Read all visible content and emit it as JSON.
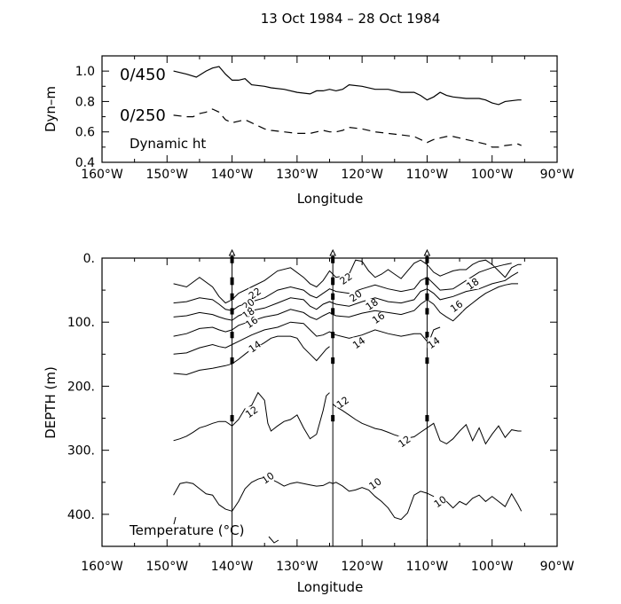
{
  "title": "13 Oct 1984 – 28 Oct 1984",
  "chart_data": [
    {
      "type": "line",
      "panel": "dynamic-height",
      "ylabel": "Dyn–m",
      "xlabel": "Longitude",
      "annotation": "Dynamic ht",
      "xlim": [
        -160,
        -90
      ],
      "ylim": [
        0.4,
        1.1
      ],
      "x_ticks": [
        -160,
        -150,
        -140,
        -130,
        -120,
        -110,
        -100,
        -90
      ],
      "x_tick_labels": [
        "160°W",
        "150°W",
        "140°W",
        "130°W",
        "120°W",
        "110°W",
        "100°W",
        "90°W"
      ],
      "y_ticks": [
        0.4,
        0.6,
        0.8,
        1.0
      ],
      "y_tick_labels": [
        "0.4",
        "0.6",
        "0.8",
        "1.0"
      ],
      "series": [
        {
          "name": "0/450",
          "style": "solid",
          "x": [
            -149,
            -147,
            -145.5,
            -144,
            -143,
            -142,
            -141,
            -140,
            -139,
            -138,
            -137,
            -135,
            -134,
            -132,
            -130,
            -128,
            -127,
            -126,
            -125,
            -124,
            -123,
            -122,
            -120,
            -118,
            -116,
            -114,
            -112,
            -111,
            -110,
            -109,
            -108,
            -107,
            -106,
            -104,
            -102,
            -101,
            -100,
            -99,
            -98,
            -96,
            -95.5
          ],
          "values": [
            1.0,
            0.98,
            0.96,
            1.0,
            1.02,
            1.03,
            0.98,
            0.94,
            0.94,
            0.95,
            0.91,
            0.9,
            0.89,
            0.88,
            0.86,
            0.85,
            0.87,
            0.87,
            0.88,
            0.87,
            0.88,
            0.91,
            0.9,
            0.88,
            0.88,
            0.86,
            0.86,
            0.84,
            0.81,
            0.83,
            0.86,
            0.84,
            0.83,
            0.82,
            0.82,
            0.81,
            0.79,
            0.78,
            0.8,
            0.81,
            0.81
          ]
        },
        {
          "name": "0/250",
          "style": "dashed",
          "x": [
            -149,
            -147,
            -146,
            -145,
            -144,
            -143,
            -142,
            -141,
            -140,
            -139,
            -138,
            -137,
            -135,
            -134,
            -132,
            -130,
            -128,
            -126,
            -125,
            -124,
            -123,
            -122,
            -120,
            -118,
            -116,
            -114,
            -112,
            -111,
            -110,
            -109,
            -108,
            -107,
            -106,
            -104,
            -102,
            -101,
            -100,
            -99,
            -98,
            -96,
            -95.5
          ],
          "values": [
            0.71,
            0.7,
            0.7,
            0.72,
            0.73,
            0.75,
            0.73,
            0.68,
            0.66,
            0.67,
            0.68,
            0.66,
            0.62,
            0.61,
            0.6,
            0.59,
            0.59,
            0.61,
            0.6,
            0.6,
            0.61,
            0.63,
            0.62,
            0.6,
            0.59,
            0.58,
            0.57,
            0.55,
            0.53,
            0.55,
            0.56,
            0.57,
            0.57,
            0.55,
            0.53,
            0.52,
            0.5,
            0.5,
            0.51,
            0.52,
            0.51
          ]
        }
      ]
    },
    {
      "type": "contour",
      "panel": "temperature-section",
      "ylabel": "DEPTH (m)",
      "xlabel": "Longitude",
      "annotation": "Temperature  (°C)",
      "xlim": [
        -160,
        -90
      ],
      "ylim": [
        450,
        0
      ],
      "x_ticks": [
        -160,
        -150,
        -140,
        -130,
        -120,
        -110,
        -100,
        -90
      ],
      "x_tick_labels": [
        "160°W",
        "150°W",
        "140°W",
        "130°W",
        "120°W",
        "110°W",
        "100°W",
        "90°W"
      ],
      "y_ticks": [
        0,
        100,
        200,
        300,
        400
      ],
      "y_tick_labels": [
        "0.",
        "100.",
        "200.",
        "300.",
        "400."
      ],
      "moorings": [
        -140,
        -124.5,
        -110
      ],
      "isotherms": [
        {
          "value": 22,
          "x": [
            -149,
            -147,
            -145,
            -143,
            -142,
            -141,
            -140,
            -139,
            -137,
            -135,
            -133,
            -131,
            -129,
            -128,
            -127,
            -126,
            -125,
            -124.5,
            -124,
            -123,
            -122,
            -121,
            -120,
            -119,
            -118,
            -117,
            -116,
            -115,
            -114,
            -113,
            -112,
            -111,
            -110,
            -109,
            -108,
            -107,
            -106,
            -105,
            -104,
            -103,
            -102,
            -101,
            -100,
            -99,
            -98,
            -97,
            -96,
            -95.5
          ],
          "depth": [
            40,
            45,
            30,
            45,
            60,
            70,
            65,
            55,
            45,
            35,
            20,
            15,
            30,
            40,
            45,
            35,
            20,
            25,
            30,
            28,
            25,
            3,
            5,
            20,
            30,
            25,
            18,
            25,
            32,
            20,
            8,
            3,
            10,
            22,
            28,
            24,
            20,
            18,
            18,
            10,
            5,
            3,
            10,
            20,
            30,
            15,
            10,
            10
          ]
        },
        {
          "value": 20,
          "x": [
            -149,
            -147,
            -145,
            -143,
            -142,
            -141,
            -140,
            -139,
            -137,
            -135,
            -133,
            -131,
            -129,
            -128,
            -127,
            -126,
            -125,
            -124.5,
            -124,
            -122,
            -120,
            -118,
            -116,
            -114,
            -112,
            -111,
            -110,
            -109,
            -108,
            -106,
            -104,
            -102,
            -100,
            -98,
            -97
          ],
          "depth": [
            70,
            68,
            62,
            65,
            72,
            80,
            82,
            75,
            68,
            62,
            50,
            45,
            50,
            58,
            62,
            55,
            48,
            50,
            52,
            55,
            48,
            42,
            48,
            52,
            48,
            35,
            30,
            40,
            50,
            48,
            35,
            22,
            15,
            10,
            8
          ]
        },
        {
          "value": 18,
          "x": [
            -149,
            -147,
            -145,
            -143,
            -142,
            -141,
            -140,
            -139,
            -137,
            -135,
            -133,
            -131,
            -129,
            -128,
            -127,
            -126,
            -125,
            -124.5,
            -124,
            -122,
            -120,
            -118,
            -116,
            -114,
            -112,
            -111,
            -110,
            -109,
            -108,
            -106,
            -104,
            -102,
            -100,
            -98,
            -97,
            -96
          ],
          "depth": [
            92,
            90,
            85,
            88,
            92,
            95,
            97,
            90,
            82,
            78,
            70,
            62,
            65,
            75,
            80,
            72,
            68,
            70,
            72,
            75,
            68,
            62,
            68,
            70,
            65,
            52,
            48,
            55,
            65,
            60,
            52,
            48,
            40,
            35,
            28,
            22
          ]
        },
        {
          "value": 16,
          "x": [
            -149,
            -147,
            -145,
            -143,
            -142,
            -141,
            -140,
            -139,
            -137,
            -135,
            -133,
            -131,
            -129,
            -128,
            -127,
            -126,
            -125,
            -124.5,
            -124,
            -122,
            -120,
            -118,
            -116,
            -114,
            -112,
            -111,
            -110,
            -109,
            -108,
            -107,
            -106,
            -105,
            -104,
            -103,
            -102,
            -101,
            -100,
            -99,
            -98,
            -97,
            -96
          ],
          "depth": [
            122,
            118,
            110,
            108,
            112,
            115,
            112,
            105,
            98,
            92,
            88,
            80,
            85,
            92,
            96,
            90,
            85,
            88,
            90,
            92,
            86,
            82,
            85,
            88,
            82,
            72,
            65,
            72,
            85,
            92,
            98,
            88,
            78,
            70,
            62,
            55,
            50,
            45,
            42,
            40,
            40
          ]
        },
        {
          "value": 14,
          "x": [
            -149,
            -147,
            -145,
            -143,
            -142,
            -141,
            -140,
            -139,
            -138,
            -137,
            -135,
            -133,
            -131,
            -129,
            -128,
            -127,
            -126,
            -125,
            -124.5,
            -124,
            -122,
            -120,
            -118,
            -116,
            -114,
            -113,
            -112,
            -111,
            -110,
            -109.5,
            -109,
            -108.5,
            -108
          ],
          "depth": [
            150,
            148,
            140,
            135,
            138,
            140,
            135,
            130,
            125,
            120,
            112,
            108,
            100,
            102,
            112,
            122,
            120,
            115,
            118,
            120,
            125,
            120,
            112,
            118,
            122,
            120,
            118,
            118,
            130,
            125,
            112,
            110,
            108
          ]
        },
        {
          "value": 12,
          "x": [
            -149,
            -147,
            -145,
            -143,
            -142,
            -141,
            -140,
            -139,
            -138,
            -137,
            -136,
            -135,
            -134,
            -133,
            -131,
            -130,
            -129,
            -128,
            -127,
            -126,
            -125.5,
            -125
          ],
          "depth": [
            180,
            182,
            175,
            172,
            170,
            168,
            165,
            158,
            150,
            142,
            138,
            132,
            125,
            122,
            122,
            125,
            140,
            150,
            160,
            148,
            142,
            138
          ]
        },
        {
          "value": 12,
          "x": [
            -149,
            -148,
            -147,
            -146,
            -145,
            -144,
            -143,
            -142,
            -141,
            -140,
            -139,
            -138,
            -137,
            -136,
            -135,
            -134.5,
            -134,
            -133,
            -132,
            -131,
            -130,
            -129,
            -128,
            -127,
            -126,
            -125.5,
            -125
          ],
          "depth": [
            285,
            282,
            278,
            272,
            265,
            262,
            258,
            255,
            255,
            262,
            252,
            235,
            230,
            210,
            222,
            258,
            270,
            262,
            255,
            252,
            245,
            265,
            282,
            275,
            238,
            215,
            210
          ]
        },
        {
          "value": 12,
          "x": [
            -124.5,
            -124,
            -123,
            -122,
            -121,
            -120,
            -119,
            -118,
            -117,
            -116,
            -115,
            -114,
            -113,
            -112,
            -111,
            -110,
            -109,
            -108,
            -107,
            -106,
            -105,
            -104,
            -103,
            -102,
            -101,
            -100,
            -99,
            -98,
            -97,
            -96,
            -95.5
          ],
          "depth": [
            228,
            232,
            238,
            245,
            252,
            258,
            262,
            266,
            268,
            272,
            276,
            279,
            281,
            279,
            272,
            265,
            258,
            285,
            290,
            282,
            270,
            260,
            285,
            265,
            290,
            275,
            262,
            280,
            268,
            270,
            270
          ]
        },
        {
          "value": 10,
          "x": [
            -149,
            -148,
            -147,
            -146,
            -145,
            -144,
            -143,
            -142,
            -141,
            -140,
            -139,
            -138,
            -137,
            -136,
            -135,
            -134,
            -133,
            -132,
            -131,
            -130,
            -129,
            -128,
            -127,
            -126,
            -125,
            -124.5,
            -124,
            -123,
            -122,
            -121,
            -120,
            -119,
            -118,
            -117,
            -116,
            -115,
            -114,
            -113,
            -112,
            -111,
            -110,
            -109,
            -108,
            -107,
            -106,
            -105,
            -104,
            -103,
            -102,
            -101,
            -100,
            -99,
            -98,
            -97,
            -96,
            -95.5
          ],
          "depth": [
            370,
            352,
            350,
            352,
            360,
            368,
            370,
            385,
            392,
            395,
            380,
            360,
            350,
            345,
            342,
            345,
            350,
            356,
            352,
            350,
            352,
            354,
            356,
            355,
            350,
            352,
            350,
            356,
            364,
            362,
            358,
            362,
            372,
            380,
            390,
            405,
            408,
            398,
            370,
            364,
            367,
            372,
            375,
            380,
            390,
            380,
            385,
            375,
            370,
            380,
            372,
            380,
            388,
            368,
            385,
            395
          ]
        }
      ],
      "contour_labels": [
        {
          "text": "22",
          "x": -136.5,
          "depth": 55
        },
        {
          "text": "20",
          "x": -137.5,
          "depth": 72
        },
        {
          "text": "18",
          "x": -137.5,
          "depth": 86
        },
        {
          "text": "16",
          "x": -137.0,
          "depth": 100
        },
        {
          "text": "14",
          "x": -136.5,
          "depth": 138
        },
        {
          "text": "12",
          "x": -137.0,
          "depth": 240
        },
        {
          "text": "12",
          "x": -123.0,
          "depth": 225
        },
        {
          "text": "10",
          "x": -134.5,
          "depth": 343
        },
        {
          "text": "22",
          "x": -122.5,
          "depth": 32
        },
        {
          "text": "20",
          "x": -121.0,
          "depth": 59
        },
        {
          "text": "18",
          "x": -118.5,
          "depth": 72
        },
        {
          "text": "16",
          "x": -117.5,
          "depth": 93
        },
        {
          "text": "14",
          "x": -120.5,
          "depth": 132
        },
        {
          "text": "12",
          "x": -113.5,
          "depth": 286
        },
        {
          "text": "10",
          "x": -118.0,
          "depth": 352
        },
        {
          "text": "18",
          "x": -103.0,
          "depth": 40
        },
        {
          "text": "16",
          "x": -105.5,
          "depth": 75
        },
        {
          "text": "14",
          "x": -109.0,
          "depth": 132
        },
        {
          "text": "10",
          "x": -108.0,
          "depth": 380
        }
      ]
    }
  ]
}
